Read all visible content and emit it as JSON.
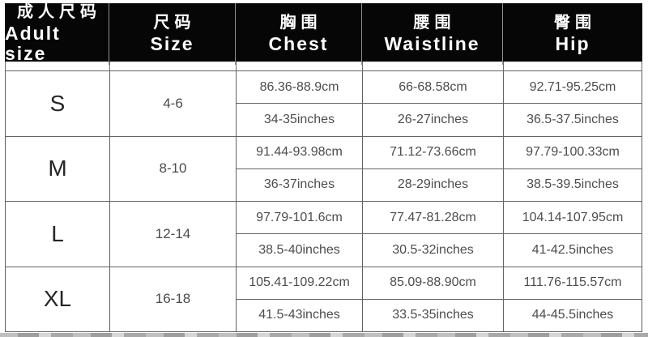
{
  "chart_data": {
    "type": "table",
    "header": [
      {
        "zh": "成人尺码",
        "en": "Adult size"
      },
      {
        "zh": "尺码",
        "en": "Size"
      },
      {
        "zh": "胸围",
        "en": "Chest"
      },
      {
        "zh": "腰围",
        "en": "Waistline"
      },
      {
        "zh": "臀围",
        "en": "Hip"
      }
    ],
    "rows": [
      {
        "size": "S",
        "size_range": "4-6",
        "chest": {
          "cm": "86.36-88.9cm",
          "inches": "34-35inches"
        },
        "waistline": {
          "cm": "66-68.58cm",
          "inches": "26-27inches"
        },
        "hip": {
          "cm": "92.71-95.25cm",
          "inches": "36.5-37.5inches"
        }
      },
      {
        "size": "M",
        "size_range": "8-10",
        "chest": {
          "cm": "91.44-93.98cm",
          "inches": "36-37inches"
        },
        "waistline": {
          "cm": "71.12-73.66cm",
          "inches": "28-29inches"
        },
        "hip": {
          "cm": "97.79-100.33cm",
          "inches": "38.5-39.5inches"
        }
      },
      {
        "size": "L",
        "size_range": "12-14",
        "chest": {
          "cm": "97.79-101.6cm",
          "inches": "38.5-40inches"
        },
        "waistline": {
          "cm": "77.47-81.28cm",
          "inches": "30.5-32inches"
        },
        "hip": {
          "cm": "104.14-107.95cm",
          "inches": "41-42.5inches"
        }
      },
      {
        "size": "XL",
        "size_range": "16-18",
        "chest": {
          "cm": "105.41-109.22cm",
          "inches": "41.5-43inches"
        },
        "waistline": {
          "cm": "85.09-88.90cm",
          "inches": "33.5-35inches"
        },
        "hip": {
          "cm": "111.76-115.57cm",
          "inches": "44-45.5inches"
        }
      }
    ],
    "layout": {
      "header_bg": "#060606",
      "header_text_color": "#ffffff",
      "body_text_color": "#4d4d4d",
      "grid_line_color": "#5f5f5f"
    }
  }
}
